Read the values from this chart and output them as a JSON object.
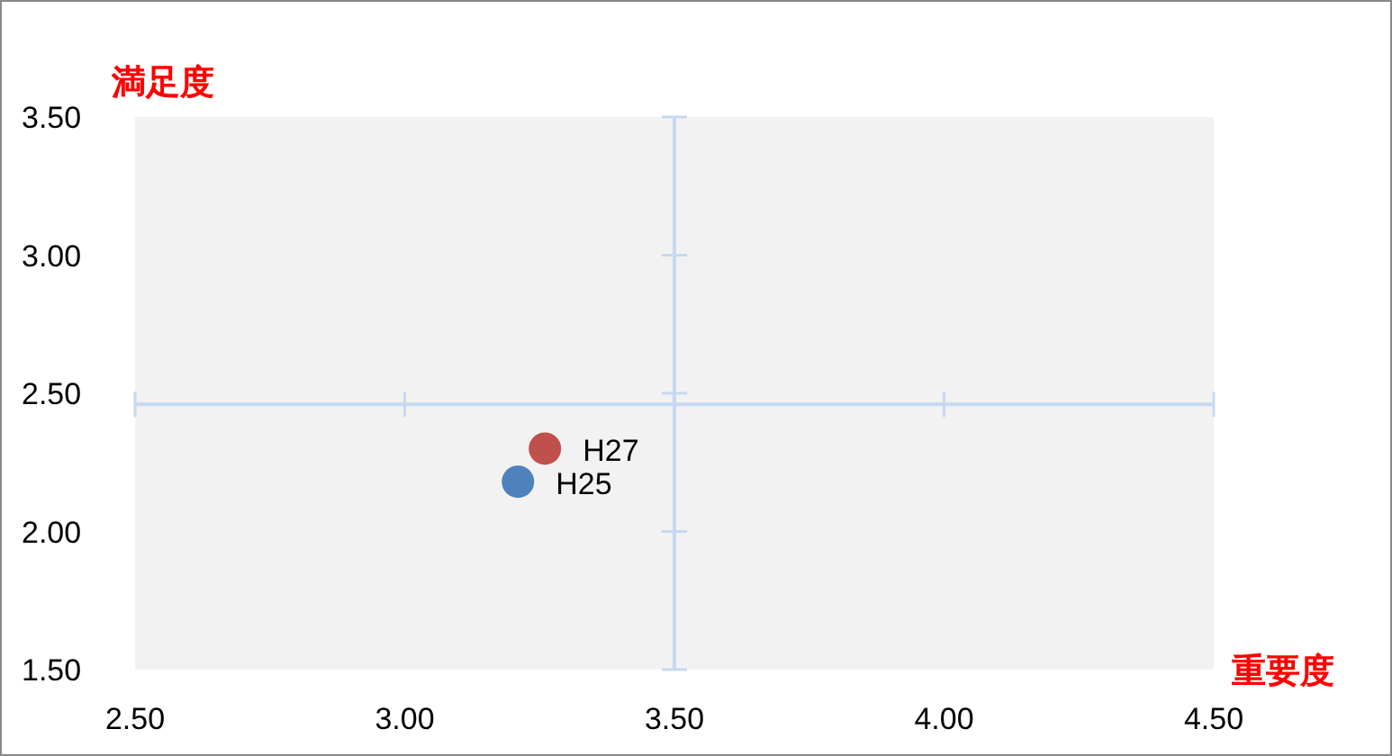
{
  "chart_data": {
    "type": "scatter",
    "xlabel": "重要度",
    "ylabel": "満足度",
    "series": [
      {
        "name": "H25",
        "color": "#4f81bd",
        "x": [
          3.21
        ],
        "values": [
          2.18
        ]
      },
      {
        "name": "H27",
        "color": "#c0504d",
        "x": [
          3.26
        ],
        "values": [
          2.3
        ]
      }
    ],
    "xlim": [
      2.5,
      4.5
    ],
    "ylim": [
      1.5,
      3.5
    ],
    "xticks": [
      {
        "value": 2.5,
        "label": "2.50"
      },
      {
        "value": 3.0,
        "label": "3.00"
      },
      {
        "value": 3.5,
        "label": "3.50"
      },
      {
        "value": 4.0,
        "label": "4.00"
      },
      {
        "value": 4.5,
        "label": "4.50"
      }
    ],
    "yticks": [
      {
        "value": 1.5,
        "label": "1.50"
      },
      {
        "value": 2.0,
        "label": "2.00"
      },
      {
        "value": 2.5,
        "label": "2.50"
      },
      {
        "value": 3.0,
        "label": "3.00"
      },
      {
        "value": 3.5,
        "label": "3.50"
      }
    ],
    "ref_lines": [
      {
        "axis": "x",
        "value": 3.5,
        "color": "#c6d9f1"
      },
      {
        "axis": "y",
        "value": 2.46,
        "color": "#c6d9f1"
      }
    ],
    "marker": "circle",
    "grid": false,
    "legend": false
  }
}
